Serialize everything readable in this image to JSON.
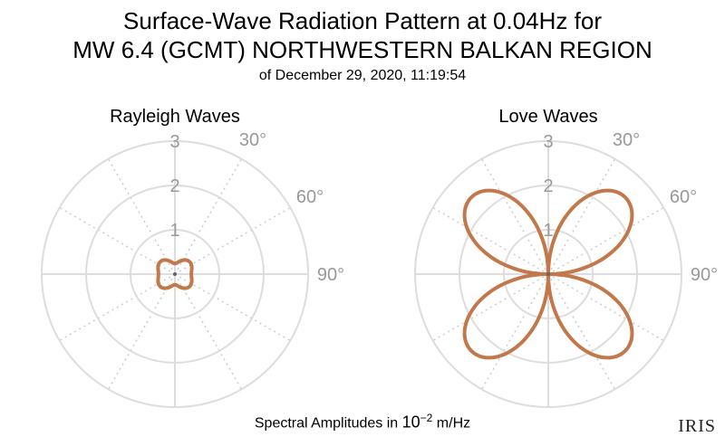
{
  "header": {
    "title_line1": "Surface-Wave Radiation Pattern at 0.04Hz for",
    "title_line2": "MW 6.4 (GCMT) NORTHWESTERN BALKAN REGION",
    "title_line3": "of December 29, 2020, 11:19:54"
  },
  "footer": {
    "units_prefix": "Spectral Amplitudes in ",
    "units_base": "10",
    "units_exp": "−2",
    "units_suffix": " m/Hz",
    "logo": "IRIS"
  },
  "colors": {
    "pattern": "#c2784a",
    "grid": "#dddddd",
    "grid_dotted": "#cccccc",
    "tick_text": "#999999"
  },
  "chart_data": [
    {
      "type": "polar",
      "title": "Rayleigh Waves",
      "r_ticks": [
        1,
        2,
        3
      ],
      "r_max": 3,
      "angle_labels": [
        "30°",
        "60°",
        "90°"
      ],
      "angle_label_values": [
        30,
        60,
        90
      ],
      "pattern": {
        "azimuth_deg": [
          0,
          30,
          60,
          90,
          120,
          150,
          180,
          210,
          240,
          270,
          300,
          330
        ],
        "amplitude": [
          0.25,
          0.2,
          0.38,
          0.45,
          0.38,
          0.2,
          0.25,
          0.2,
          0.38,
          0.45,
          0.38,
          0.2
        ]
      }
    },
    {
      "type": "polar",
      "title": "Love Waves",
      "r_ticks": [
        1,
        2,
        3
      ],
      "r_max": 3,
      "angle_labels": [
        "30°",
        "60°",
        "90°"
      ],
      "angle_label_values": [
        30,
        60,
        90
      ],
      "pattern": {
        "azimuth_deg": [
          0,
          45,
          90,
          135,
          180,
          225,
          270,
          315
        ],
        "amplitude": [
          0,
          2.45,
          0,
          2.45,
          0,
          2.45,
          0,
          2.45
        ]
      }
    }
  ]
}
